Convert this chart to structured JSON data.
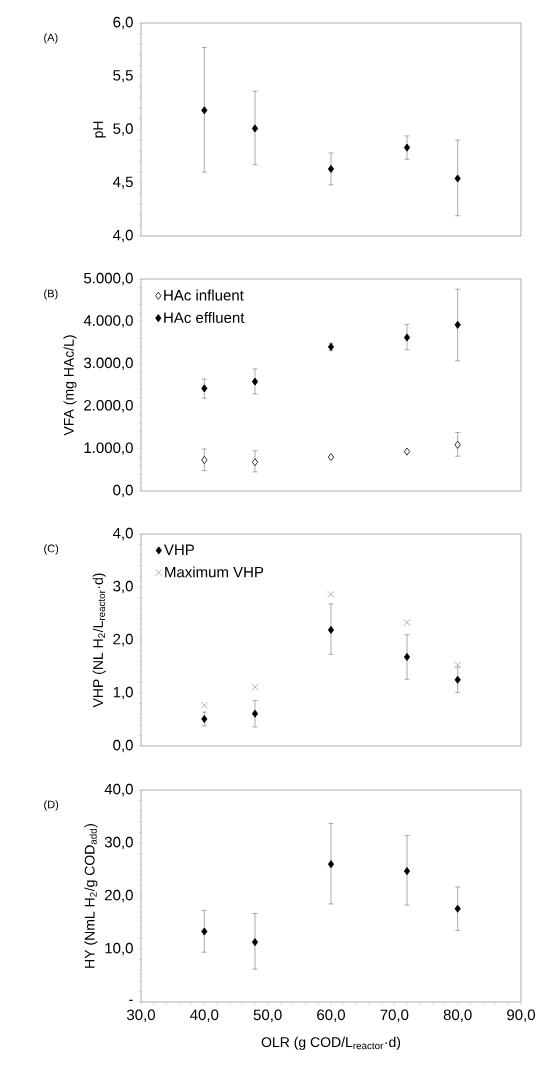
{
  "chart_data": [
    {
      "type": "scatter",
      "title": "(A)",
      "ylabel": "pH",
      "xlim": [
        30,
        90
      ],
      "ylim": [
        4.0,
        6.0
      ],
      "yticks": [
        {
          "value": 4.0,
          "label": "4,0"
        },
        {
          "value": 4.5,
          "label": "4,5"
        },
        {
          "value": 5.0,
          "label": "5,0"
        },
        {
          "value": 5.5,
          "label": "5,5"
        },
        {
          "value": 6.0,
          "label": "6,0"
        }
      ],
      "tick_labels": "y",
      "legend": false,
      "series": [
        {
          "x": [
            40,
            48,
            60,
            72,
            80
          ],
          "values": [
            5.18,
            5.01,
            4.63,
            4.83,
            4.54
          ],
          "color": "#000000",
          "marker": "diamond",
          "errors": [
            [
              4.6,
              5.77
            ],
            [
              4.67,
              5.36
            ],
            [
              4.48,
              4.78
            ],
            [
              4.72,
              4.94
            ],
            [
              4.19,
              4.9
            ]
          ]
        }
      ]
    },
    {
      "type": "scatter",
      "title": "(B)",
      "ylabel": "VFA (mg HAc/L)",
      "xlim": [
        30,
        90
      ],
      "ylim": [
        0,
        5000
      ],
      "yticks": [
        {
          "value": 0,
          "label": "0,0"
        },
        {
          "value": 1000,
          "label": "1.000,0"
        },
        {
          "value": 2000,
          "label": "2.000,0"
        },
        {
          "value": 3000,
          "label": "3.000,0"
        },
        {
          "value": 4000,
          "label": "4.000,0"
        },
        {
          "value": 5000,
          "label": "5.000,0"
        }
      ],
      "tick_labels": "y",
      "legend": "top left",
      "series": [
        {
          "name": "HAc influent",
          "x": [
            40,
            48,
            60,
            72,
            80
          ],
          "values": [
            730,
            680,
            800,
            930,
            1090
          ],
          "color": "#ffffff",
          "marker": "diamond",
          "errors": [
            [
              480,
              990
            ],
            [
              450,
              950
            ],
            null,
            null,
            [
              820,
              1380
            ]
          ]
        },
        {
          "name": "HAc effluent",
          "x": [
            40,
            48,
            60,
            72,
            80
          ],
          "values": [
            2420,
            2580,
            3400,
            3620,
            3920
          ],
          "color": "#000000",
          "marker": "diamond",
          "errors": [
            [
              2190,
              2640
            ],
            [
              2290,
              2880
            ],
            [
              3310,
              3490
            ],
            [
              3330,
              3930
            ],
            [
              3070,
              4760
            ]
          ]
        }
      ]
    },
    {
      "type": "scatter",
      "title": "(C)",
      "ylabel": "VHP (NL H$_{2}$/L$_{reactor}$·d)",
      "xlim": [
        30,
        90
      ],
      "ylim": [
        0,
        4.0
      ],
      "yticks": [
        {
          "value": 0,
          "label": "0,0"
        },
        {
          "value": 1.0,
          "label": "1,0"
        },
        {
          "value": 2.0,
          "label": "2,0"
        },
        {
          "value": 3.0,
          "label": "3,0"
        },
        {
          "value": 4.0,
          "label": "4,0"
        }
      ],
      "tick_labels": "y",
      "legend": "top left",
      "series": [
        {
          "name": "VHP",
          "x": [
            40,
            48,
            60,
            72,
            80
          ],
          "values": [
            0.51,
            0.61,
            2.19,
            1.68,
            1.25
          ],
          "color": "#000000",
          "marker": "diamond",
          "errors": [
            [
              0.38,
              0.64
            ],
            [
              0.36,
              0.86
            ],
            [
              1.73,
              2.68
            ],
            [
              1.26,
              2.1
            ],
            [
              1.01,
              1.49
            ]
          ]
        },
        {
          "name": "Maximum VHP",
          "x": [
            40,
            48,
            60,
            72,
            80
          ],
          "values": [
            0.77,
            1.11,
            2.86,
            2.33,
            1.53
          ],
          "color": "#808080",
          "marker": "cross"
        }
      ]
    },
    {
      "type": "scatter",
      "title": "(D)",
      "ylabel": "HY (NmL H$_{2}$/g COD$_{add}$)",
      "xlabel": "OLR (g COD/L$_{reactor}$·d)",
      "xlim": [
        30,
        90
      ],
      "ylim": [
        0,
        40
      ],
      "xticks": [
        {
          "value": 30,
          "label": "30,0"
        },
        {
          "value": 40,
          "label": "40,0"
        },
        {
          "value": 50,
          "label": "50,0"
        },
        {
          "value": 60,
          "label": "60,0"
        },
        {
          "value": 70,
          "label": "70,0"
        },
        {
          "value": 80,
          "label": "80,0"
        },
        {
          "value": 90,
          "label": "90,0"
        }
      ],
      "yticks": [
        {
          "value": 0,
          "label": "-"
        },
        {
          "value": 10,
          "label": "10,0"
        },
        {
          "value": 20,
          "label": "20,0"
        },
        {
          "value": 30,
          "label": "30,0"
        },
        {
          "value": 40,
          "label": "40,0"
        }
      ],
      "legend": false,
      "series": [
        {
          "x": [
            40,
            48,
            60,
            72,
            80
          ],
          "values": [
            13.3,
            11.3,
            26.0,
            24.7,
            17.6
          ],
          "color": "#000000",
          "marker": "diamond",
          "errors": [
            [
              9.4,
              17.3
            ],
            [
              6.2,
              16.7
            ],
            [
              18.5,
              33.7
            ],
            [
              18.3,
              31.4
            ],
            [
              13.5,
              21.7
            ]
          ]
        }
      ]
    }
  ]
}
